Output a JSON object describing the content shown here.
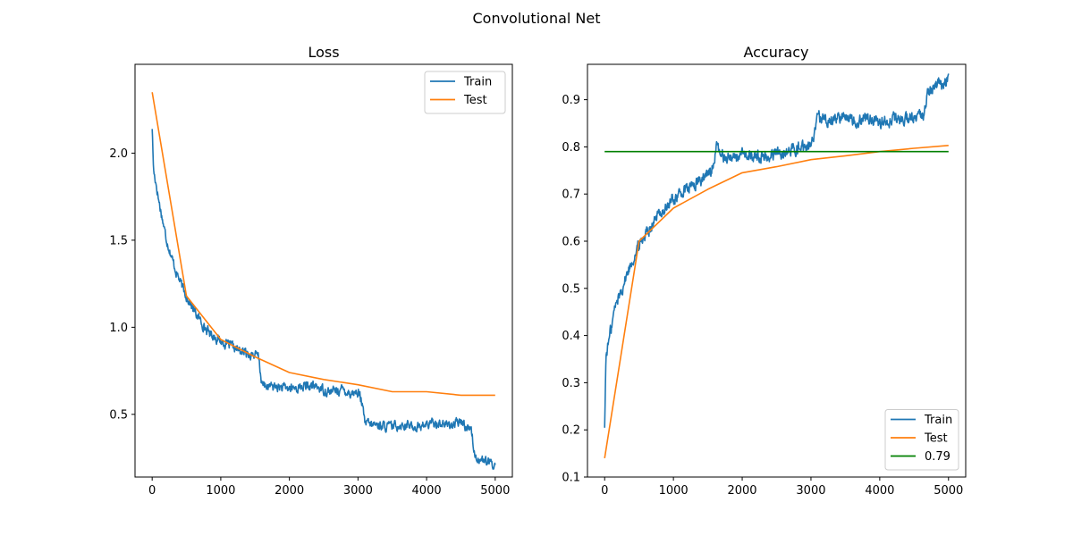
{
  "figure": {
    "suptitle": "Convolutional Net"
  },
  "colors": {
    "train": "#1f77b4",
    "test": "#ff7f0e",
    "reference": "#008000"
  },
  "chart_data": [
    {
      "type": "line",
      "title": "Loss",
      "xlabel": "",
      "ylabel": "",
      "xlim": [
        -250,
        5250
      ],
      "ylim": [
        0.14,
        2.51
      ],
      "xticks": [
        0,
        1000,
        2000,
        3000,
        4000,
        5000
      ],
      "xtick_labels": [
        "0",
        "1000",
        "2000",
        "3000",
        "4000",
        "5000"
      ],
      "yticks": [
        0.5,
        1.0,
        1.5,
        2.0
      ],
      "ytick_labels": [
        "0.5",
        "1.0",
        "1.5",
        "2.0"
      ],
      "grid": false,
      "legend": {
        "placement": "upper right",
        "entries": [
          "Train",
          "Test"
        ]
      },
      "series": [
        {
          "name": "Train",
          "style": "noisy",
          "noise": 0.022,
          "x": [
            0,
            20,
            60,
            100,
            150,
            200,
            250,
            300,
            350,
            400,
            450,
            500,
            600,
            700,
            800,
            900,
            1000,
            1100,
            1200,
            1300,
            1400,
            1500,
            1550,
            1600,
            1700,
            1800,
            1900,
            2000,
            2100,
            2200,
            2300,
            2400,
            2500,
            2600,
            2700,
            2800,
            2900,
            3000,
            3050,
            3100,
            3200,
            3300,
            3400,
            3500,
            3600,
            3700,
            3800,
            3900,
            4000,
            4100,
            4200,
            4300,
            4400,
            4500,
            4550,
            4600,
            4650,
            4700,
            4800,
            4900,
            5000
          ],
          "y": [
            2.15,
            1.9,
            1.82,
            1.72,
            1.62,
            1.52,
            1.45,
            1.38,
            1.32,
            1.27,
            1.22,
            1.18,
            1.1,
            1.04,
            0.98,
            0.95,
            0.92,
            0.9,
            0.88,
            0.86,
            0.85,
            0.84,
            0.83,
            0.67,
            0.66,
            0.66,
            0.65,
            0.65,
            0.65,
            0.66,
            0.66,
            0.66,
            0.64,
            0.63,
            0.64,
            0.64,
            0.62,
            0.63,
            0.58,
            0.45,
            0.44,
            0.44,
            0.43,
            0.43,
            0.44,
            0.44,
            0.43,
            0.43,
            0.44,
            0.45,
            0.45,
            0.44,
            0.44,
            0.46,
            0.44,
            0.42,
            0.43,
            0.26,
            0.24,
            0.22,
            0.21
          ]
        },
        {
          "name": "Test",
          "style": "line",
          "x": [
            0,
            500,
            1000,
            1500,
            2000,
            2500,
            3000,
            3500,
            4000,
            4500,
            5000
          ],
          "y": [
            2.35,
            1.18,
            0.93,
            0.83,
            0.74,
            0.7,
            0.67,
            0.63,
            0.63,
            0.61,
            0.61
          ]
        }
      ]
    },
    {
      "type": "line",
      "title": "Accuracy",
      "xlabel": "",
      "ylabel": "",
      "xlim": [
        -250,
        5250
      ],
      "ylim": [
        0.1,
        0.975
      ],
      "xticks": [
        0,
        1000,
        2000,
        3000,
        4000,
        5000
      ],
      "xtick_labels": [
        "0",
        "1000",
        "2000",
        "3000",
        "4000",
        "5000"
      ],
      "yticks": [
        0.1,
        0.2,
        0.3,
        0.4,
        0.5,
        0.6,
        0.7,
        0.8,
        0.9
      ],
      "ytick_labels": [
        "0.1",
        "0.2",
        "0.3",
        "0.4",
        "0.5",
        "0.6",
        "0.7",
        "0.8",
        "0.9"
      ],
      "grid": false,
      "legend": {
        "placement": "lower right",
        "entries": [
          "Train",
          "Test",
          "0.79"
        ]
      },
      "series": [
        {
          "name": "Train",
          "style": "noisy",
          "noise": 0.011,
          "x": [
            0,
            20,
            50,
            100,
            150,
            200,
            300,
            400,
            500,
            600,
            700,
            800,
            900,
            1000,
            1100,
            1200,
            1300,
            1400,
            1500,
            1580,
            1620,
            1700,
            1800,
            1900,
            2000,
            2100,
            2200,
            2300,
            2400,
            2500,
            2600,
            2700,
            2800,
            2900,
            3000,
            3050,
            3100,
            3200,
            3300,
            3400,
            3500,
            3600,
            3700,
            3800,
            3900,
            4000,
            4100,
            4200,
            4300,
            4400,
            4500,
            4550,
            4600,
            4650,
            4700,
            4800,
            4900,
            5000
          ],
          "y": [
            0.21,
            0.36,
            0.38,
            0.42,
            0.46,
            0.48,
            0.52,
            0.56,
            0.59,
            0.62,
            0.64,
            0.66,
            0.67,
            0.69,
            0.7,
            0.71,
            0.72,
            0.73,
            0.74,
            0.76,
            0.8,
            0.78,
            0.78,
            0.78,
            0.78,
            0.78,
            0.78,
            0.78,
            0.78,
            0.79,
            0.79,
            0.79,
            0.8,
            0.8,
            0.8,
            0.82,
            0.86,
            0.86,
            0.86,
            0.86,
            0.87,
            0.86,
            0.86,
            0.86,
            0.86,
            0.85,
            0.86,
            0.86,
            0.86,
            0.86,
            0.86,
            0.86,
            0.86,
            0.87,
            0.92,
            0.93,
            0.93,
            0.94
          ]
        },
        {
          "name": "Test",
          "style": "line",
          "x": [
            0,
            500,
            1000,
            1500,
            2000,
            2500,
            3000,
            3500,
            4000,
            4500,
            5000
          ],
          "y": [
            0.14,
            0.6,
            0.67,
            0.71,
            0.745,
            0.758,
            0.773,
            0.781,
            0.79,
            0.797,
            0.803
          ]
        },
        {
          "name": "0.79",
          "style": "line",
          "x": [
            0,
            5000
          ],
          "y": [
            0.79,
            0.79
          ]
        }
      ]
    }
  ]
}
